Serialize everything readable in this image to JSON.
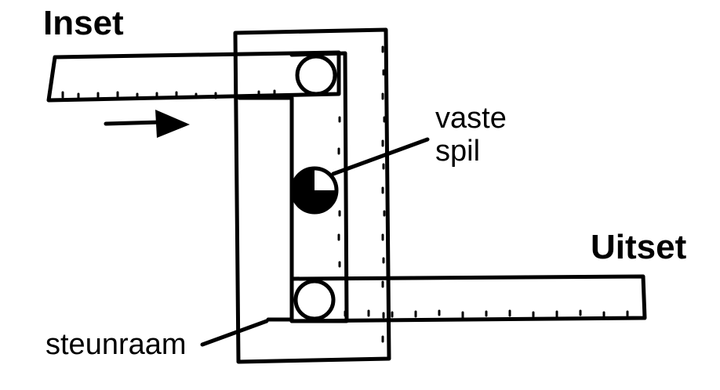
{
  "diagram": {
    "title": "Inset",
    "output_label": "Uitset",
    "pivot_label_line1": "vaste",
    "pivot_label_line2": "spil",
    "frame_label": "steunraam",
    "colors": {
      "ink": "#000000",
      "background": "#ffffff"
    }
  }
}
